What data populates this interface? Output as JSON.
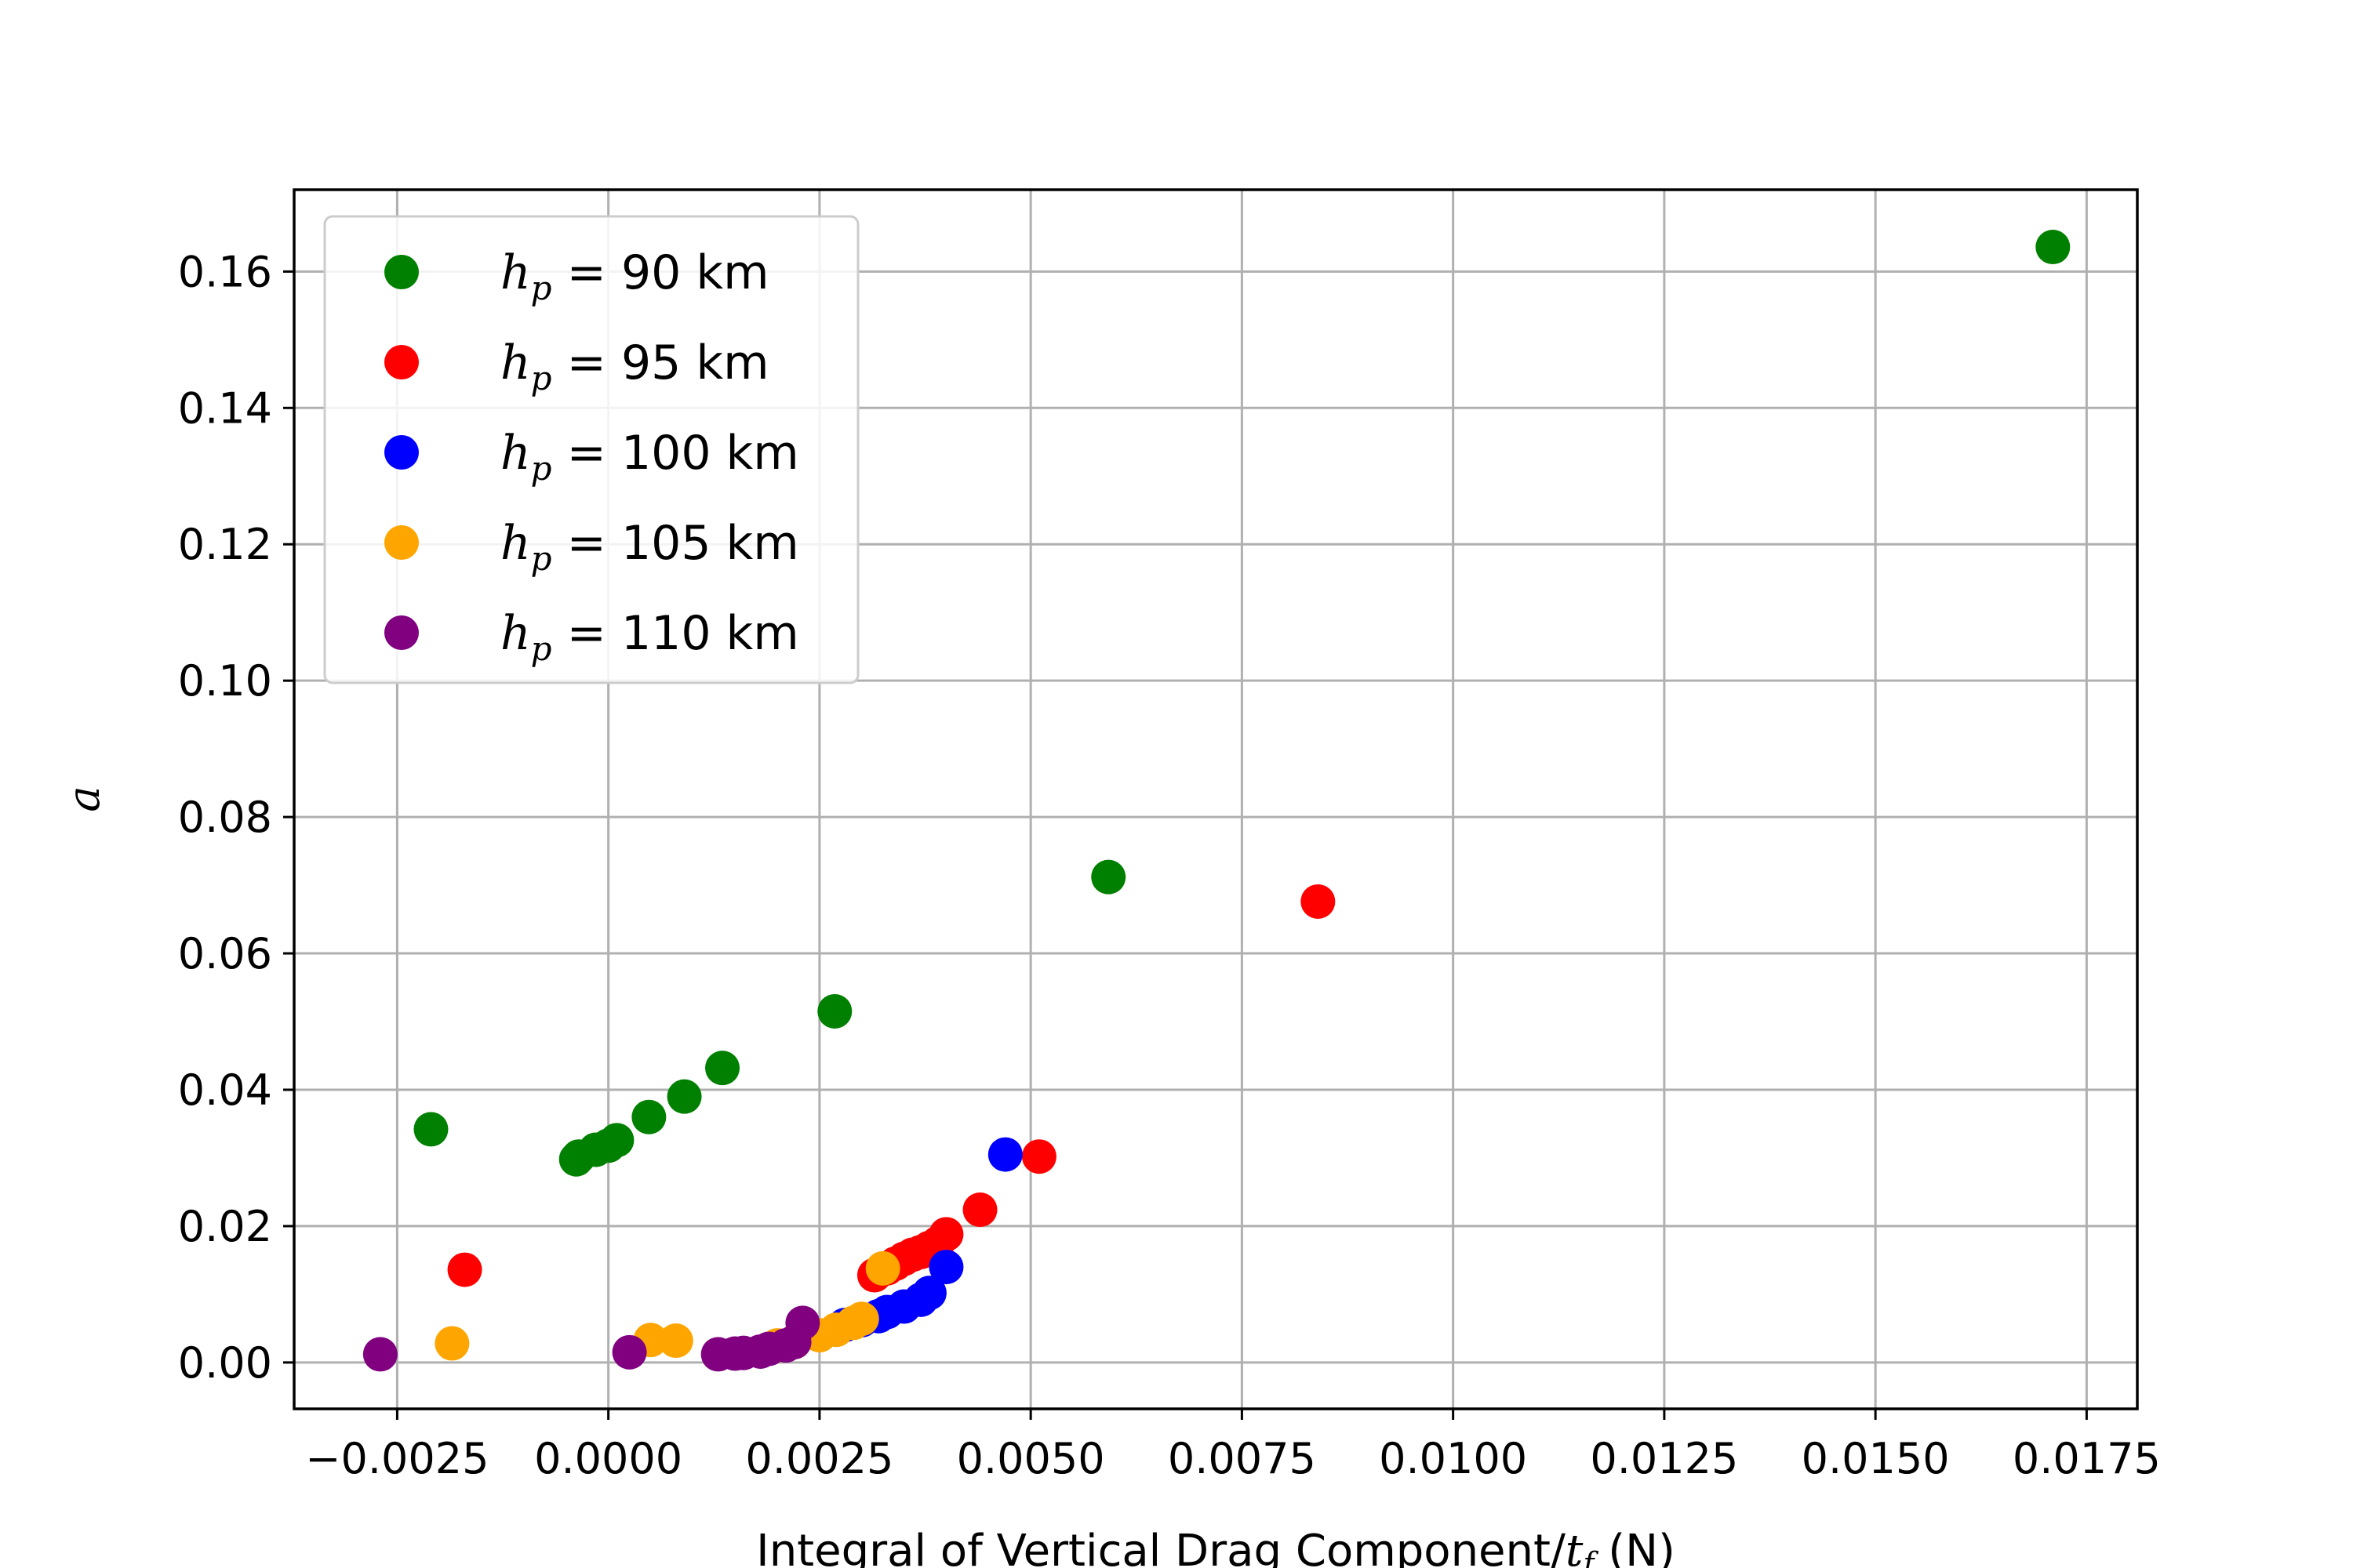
{
  "chart_data": {
    "type": "scatter",
    "xlabel": "Integral of Vertical Drag Component/t_f (N)",
    "ylabel": "a",
    "xlim": [
      -0.00372,
      0.0181
    ],
    "ylim": [
      -0.0068,
      0.172
    ],
    "x_ticks": [
      -0.0025,
      0.0,
      0.0025,
      0.005,
      0.0075,
      0.01,
      0.0125,
      0.015,
      0.0175
    ],
    "x_tick_labels": [
      "−0.0025",
      "0.0000",
      "0.0025",
      "0.0050",
      "0.0075",
      "0.0100",
      "0.0125",
      "0.0150",
      "0.0175"
    ],
    "y_ticks": [
      0.0,
      0.02,
      0.04,
      0.06,
      0.08,
      0.1,
      0.12,
      0.14,
      0.16
    ],
    "y_tick_labels": [
      "0.00",
      "0.02",
      "0.04",
      "0.06",
      "0.08",
      "0.10",
      "0.12",
      "0.14",
      "0.16"
    ],
    "grid": true,
    "legend_position": "top-left",
    "series": [
      {
        "name": "h_p = 90 km",
        "color": "#008000",
        "points": [
          [
            -0.0021,
            0.0342
          ],
          [
            -0.00038,
            0.0298
          ],
          [
            -0.00035,
            0.0302
          ],
          [
            -0.00015,
            0.0312
          ],
          [
            0.0,
            0.0318
          ],
          [
            0.0001,
            0.0326
          ],
          [
            0.00048,
            0.036
          ],
          [
            0.0009,
            0.039
          ],
          [
            0.00135,
            0.0432
          ],
          [
            0.00268,
            0.0515
          ],
          [
            0.00592,
            0.0712
          ],
          [
            0.0171,
            0.1636
          ]
        ]
      },
      {
        "name": "h_p = 95 km",
        "color": "#ff0000",
        "points": [
          [
            -0.0017,
            0.0136
          ],
          [
            0.00315,
            0.0128
          ],
          [
            0.0033,
            0.0138
          ],
          [
            0.0034,
            0.0145
          ],
          [
            0.0035,
            0.0152
          ],
          [
            0.0036,
            0.0158
          ],
          [
            0.0037,
            0.0162
          ],
          [
            0.0038,
            0.0168
          ],
          [
            0.0039,
            0.0175
          ],
          [
            0.004,
            0.0188
          ],
          [
            0.0044,
            0.0224
          ],
          [
            0.0051,
            0.0302
          ],
          [
            0.0084,
            0.0676
          ]
        ]
      },
      {
        "name": "h_p = 100 km",
        "color": "#0000ff",
        "points": [
          [
            0.0028,
            0.0055
          ],
          [
            0.003,
            0.0062
          ],
          [
            0.0032,
            0.0068
          ],
          [
            0.0033,
            0.0074
          ],
          [
            0.0035,
            0.0082
          ],
          [
            0.0037,
            0.0092
          ],
          [
            0.0038,
            0.0102
          ],
          [
            0.004,
            0.014
          ],
          [
            0.0047,
            0.0305
          ]
        ]
      },
      {
        "name": "h_p = 105 km",
        "color": "#ffa500",
        "points": [
          [
            -0.00185,
            0.0028
          ],
          [
            0.0005,
            0.0033
          ],
          [
            0.0008,
            0.0032
          ],
          [
            0.002,
            0.0025
          ],
          [
            0.0022,
            0.003
          ],
          [
            0.0025,
            0.004
          ],
          [
            0.0027,
            0.0048
          ],
          [
            0.0029,
            0.0058
          ],
          [
            0.003,
            0.0064
          ],
          [
            0.00325,
            0.0138
          ]
        ]
      },
      {
        "name": "h_p = 110 km",
        "color": "#800080",
        "points": [
          [
            -0.0027,
            0.0012
          ],
          [
            0.00025,
            0.0015
          ],
          [
            0.0013,
            0.0012
          ],
          [
            0.0015,
            0.0013
          ],
          [
            0.0016,
            0.0014
          ],
          [
            0.0018,
            0.0016
          ],
          [
            0.0019,
            0.002
          ],
          [
            0.0021,
            0.0025
          ],
          [
            0.0022,
            0.003
          ],
          [
            0.0023,
            0.0058
          ]
        ]
      }
    ]
  }
}
